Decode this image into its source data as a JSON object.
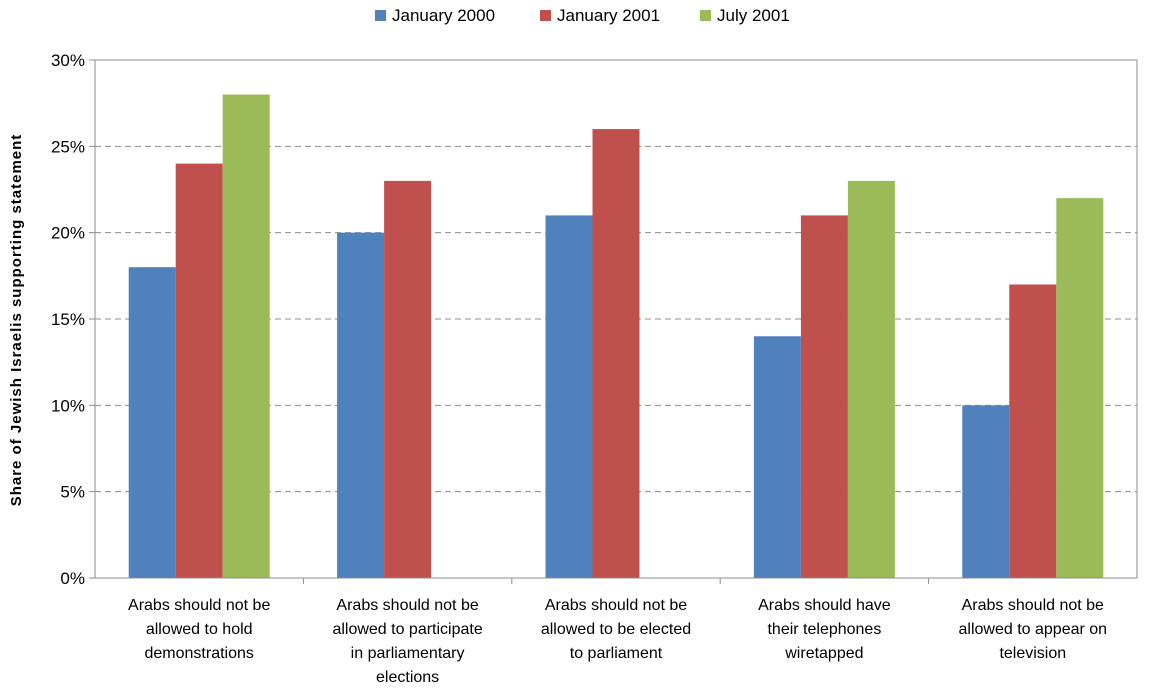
{
  "chart_data": {
    "type": "bar",
    "title": "",
    "xlabel": "",
    "ylabel": "Share of Jewish Israelis supporting statement",
    "ylim": [
      0,
      30
    ],
    "yticks": [
      "0%",
      "5%",
      "10%",
      "15%",
      "20%",
      "25%",
      "30%"
    ],
    "grid": true,
    "legend_position": "top",
    "categories": [
      [
        "Arabs should not be",
        "allowed to hold",
        "demonstrations"
      ],
      [
        "Arabs should not be",
        "allowed to participate",
        "in parliamentary",
        "elections"
      ],
      [
        "Arabs should not be",
        "allowed to be elected",
        "to parliament"
      ],
      [
        "Arabs should have",
        "their telephones",
        "wiretapped"
      ],
      [
        "Arabs should not be",
        "allowed to appear on",
        "television"
      ]
    ],
    "series": [
      {
        "name": "January 2000",
        "color": "#4f81bd",
        "values": [
          18,
          20,
          21,
          14,
          10
        ]
      },
      {
        "name": "January 2001",
        "color": "#c0504d",
        "values": [
          24,
          23,
          26,
          21,
          17
        ]
      },
      {
        "name": "July 2001",
        "color": "#9bbb59",
        "values": [
          28,
          null,
          null,
          23,
          22
        ]
      }
    ]
  }
}
